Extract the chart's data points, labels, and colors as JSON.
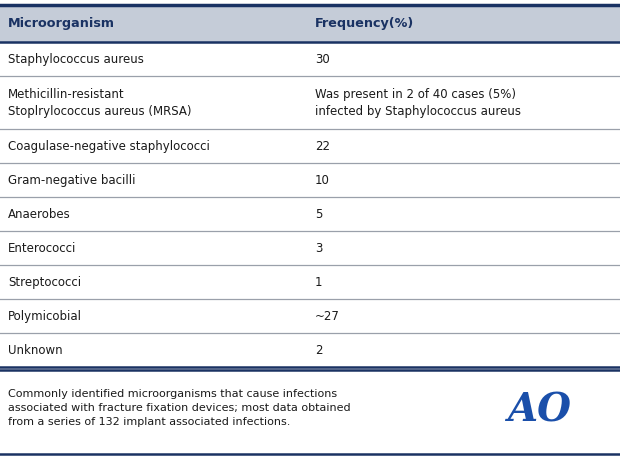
{
  "header": [
    "Microorganism",
    "Frequency(%)"
  ],
  "rows": [
    [
      "Staphylococcus aureus",
      "30"
    ],
    [
      "Methicillin-resistant\nStoplrylococcus aureus (MRSA)",
      "Was present in 2 of 40 cases (5%)\ninfected by Staphylococcus aureus"
    ],
    [
      "Coagulase-negative staphylococci",
      "22"
    ],
    [
      "Gram-negative bacilli",
      "10"
    ],
    [
      "Anaerobes",
      "5"
    ],
    [
      "Enterococci",
      "3"
    ],
    [
      "Streptococci",
      "1"
    ],
    [
      "Polymicobial",
      "~27"
    ],
    [
      "Unknown",
      "2"
    ]
  ],
  "caption": "Commonly identified microorganisms that cause infections\nassociated with fracture fixation devices; most data obtained\nfrom a series of 132 implant associated infections.",
  "header_bg": "#c5ccd8",
  "body_bg": "#ffffff",
  "header_text_color": "#1a3263",
  "body_text_color": "#1a1a1a",
  "caption_text_color": "#1a1a1a",
  "border_color": "#1a3263",
  "divider_color": "#9aa0aa",
  "col_split": 0.495,
  "ao_color": "#1a4faa",
  "fig_width": 6.2,
  "fig_height": 4.59,
  "dpi": 100,
  "header_fontsize": 9.2,
  "body_fontsize": 8.5,
  "caption_fontsize": 8.0,
  "ao_fontsize": 28
}
